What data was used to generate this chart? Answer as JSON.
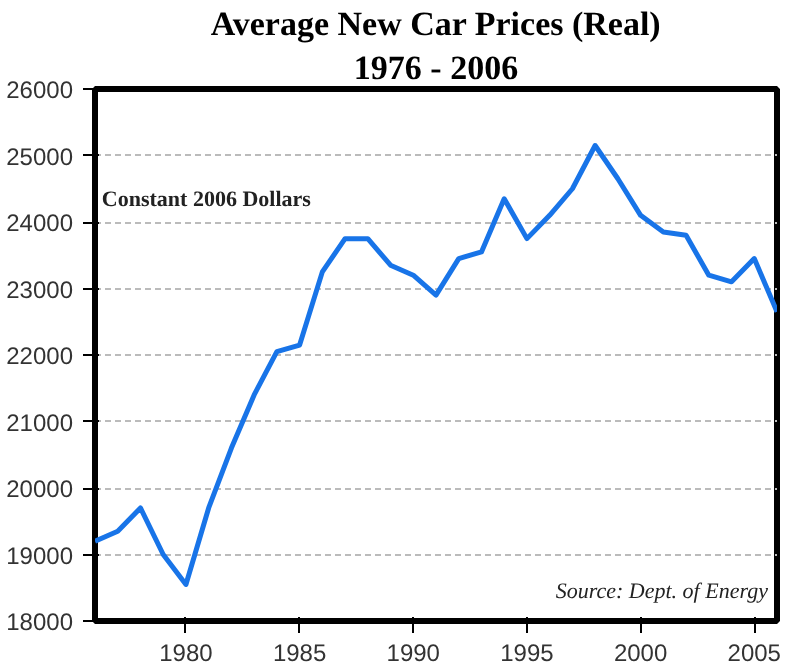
{
  "chart_data": {
    "type": "line",
    "title": "Average New Car Prices (Real)",
    "subtitle": "1976 - 2006",
    "x": [
      1976,
      1977,
      1978,
      1979,
      1980,
      1981,
      1982,
      1983,
      1984,
      1985,
      1986,
      1987,
      1988,
      1989,
      1990,
      1991,
      1992,
      1993,
      1994,
      1995,
      1996,
      1997,
      1998,
      1999,
      2000,
      2001,
      2002,
      2003,
      2004,
      2005,
      2006
    ],
    "series": [
      {
        "color": "#1874e8",
        "values": [
          19200,
          19350,
          19700,
          19000,
          18550,
          19700,
          20600,
          21400,
          22050,
          22150,
          23250,
          23750,
          23750,
          23350,
          23200,
          22900,
          23450,
          23550,
          24350,
          23750,
          24100,
          24500,
          25150,
          24650,
          24100,
          23850,
          23800,
          23200,
          23100,
          23450,
          22650
        ]
      }
    ],
    "xlim": [
      1976,
      2006
    ],
    "xticks": [
      1980,
      1985,
      1990,
      1995,
      2000,
      2005
    ],
    "ylim": [
      18000,
      26000
    ],
    "yticks": [
      18000,
      19000,
      20000,
      21000,
      22000,
      23000,
      24000,
      25000,
      26000
    ],
    "grid": "y",
    "line_style": "solid",
    "marker": "none",
    "annotations": [
      "Constant 2006 Dollars",
      "Source: Dept. of Energy"
    ]
  }
}
